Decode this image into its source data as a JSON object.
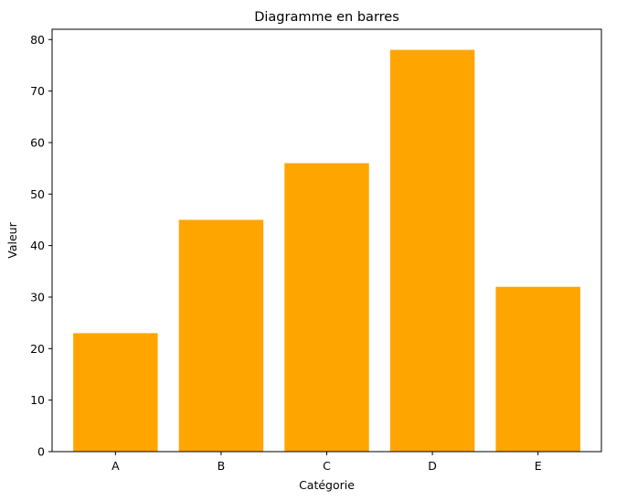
{
  "chart_data": {
    "type": "bar",
    "title": "Diagramme en barres",
    "xlabel": "Catégorie",
    "ylabel": "Valeur",
    "categories": [
      "A",
      "B",
      "C",
      "D",
      "E"
    ],
    "values": [
      23,
      45,
      56,
      78,
      32
    ],
    "ylim": [
      0,
      82
    ],
    "yticks": [
      0,
      10,
      20,
      30,
      40,
      50,
      60,
      70,
      80
    ],
    "bar_color": "#ffa500",
    "grid": false
  }
}
